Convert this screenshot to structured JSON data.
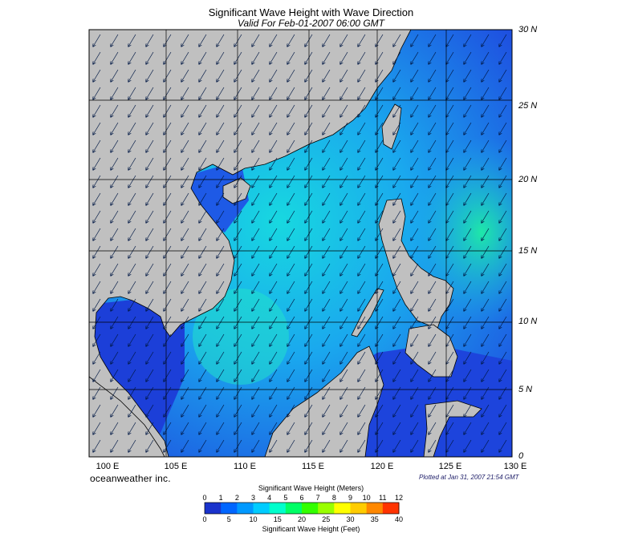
{
  "header": {
    "title": "Significant Wave Height with Wave Direction",
    "subtitle": "Valid For Feb-01-2007 06:00 GMT"
  },
  "map": {
    "latitude_labels": [
      "30 N",
      "25 N",
      "20 N",
      "15 N",
      "10 N",
      "5 N",
      "0"
    ],
    "longitude_labels": [
      "100 E",
      "105 E",
      "110 E",
      "115 E",
      "120 E",
      "125 E",
      "130 E"
    ],
    "land_color": "#c0c0c0",
    "wave_direction": "northeast-to-southwest"
  },
  "footer": {
    "brand": "oceanweather inc.",
    "plotted": "Plotted at Jan 31, 2007 21:54 GMT"
  },
  "colorbar": {
    "title_meters": "Significant Wave Height (Meters)",
    "title_feet": "Significant Wave Height (Feet)",
    "meters_ticks": [
      "0",
      "1",
      "2",
      "3",
      "4",
      "5",
      "6",
      "7",
      "8",
      "9",
      "10",
      "11",
      "12"
    ],
    "feet_ticks": [
      "0",
      "5",
      "10",
      "15",
      "20",
      "25",
      "30",
      "35",
      "40"
    ],
    "colors": [
      "#1a33cc",
      "#0066ff",
      "#0099ff",
      "#00ccff",
      "#00ffcc",
      "#00ff66",
      "#33ff00",
      "#99ff00",
      "#ffff00",
      "#ffcc00",
      "#ff8800",
      "#ff3300"
    ]
  }
}
